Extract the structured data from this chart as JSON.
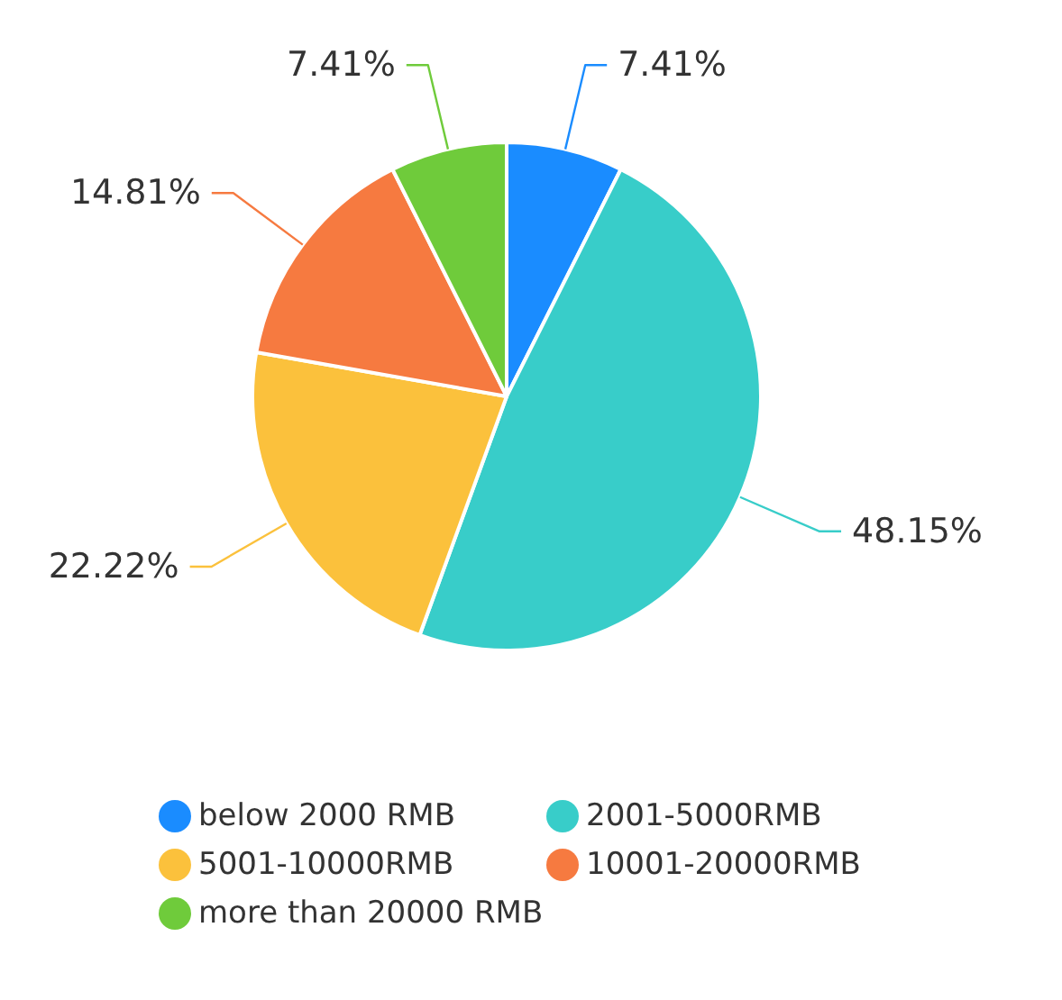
{
  "chart_data": {
    "type": "pie",
    "categories": [
      "below 2000 RMB",
      "2001-5000RMB",
      "5001-10000RMB",
      "10001-20000RMB",
      "more than 20000 RMB"
    ],
    "values": [
      7.41,
      48.15,
      22.22,
      14.81,
      7.41
    ],
    "value_labels": [
      "7.41%",
      "48.15%",
      "22.22%",
      "14.81%",
      "7.41%"
    ],
    "colors": [
      "#1a8cff",
      "#38cdc9",
      "#fbc13c",
      "#f67a40",
      "#6fcb3b"
    ],
    "legend": "bottom"
  }
}
